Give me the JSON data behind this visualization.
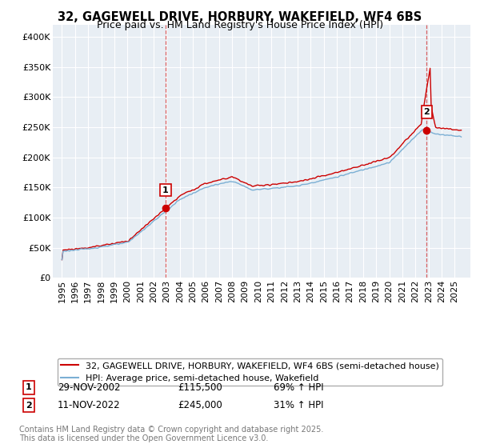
{
  "title": "32, GAGEWELL DRIVE, HORBURY, WAKEFIELD, WF4 6BS",
  "subtitle": "Price paid vs. HM Land Registry's House Price Index (HPI)",
  "ylim": [
    0,
    420000
  ],
  "yticks": [
    0,
    50000,
    100000,
    150000,
    200000,
    250000,
    300000,
    350000,
    400000
  ],
  "ytick_labels": [
    "£0",
    "£50K",
    "£100K",
    "£150K",
    "£200K",
    "£250K",
    "£300K",
    "£350K",
    "£400K"
  ],
  "line_color_red": "#cc0000",
  "line_color_blue": "#7bafd4",
  "vline_color": "#cc0000",
  "purchase1_date_num": 2002.91,
  "purchase1_price": 115500,
  "purchase1_label": "1",
  "purchase1_date_str": "29-NOV-2002",
  "purchase1_pct": "69% ↑ HPI",
  "purchase2_date_num": 2022.86,
  "purchase2_price": 245000,
  "purchase2_label": "2",
  "purchase2_date_str": "11-NOV-2022",
  "purchase2_pct": "31% ↑ HPI",
  "legend_entry1": "32, GAGEWELL DRIVE, HORBURY, WAKEFIELD, WF4 6BS (semi-detached house)",
  "legend_entry2": "HPI: Average price, semi-detached house, Wakefield",
  "footnote": "Contains HM Land Registry data © Crown copyright and database right 2025.\nThis data is licensed under the Open Government Licence v3.0.",
  "background_color": "#ffffff",
  "plot_bg_color": "#e8eef4",
  "grid_color": "#ffffff",
  "title_fontsize": 10.5,
  "subtitle_fontsize": 9,
  "tick_fontsize": 8,
  "legend_fontsize": 8,
  "footnote_fontsize": 7
}
